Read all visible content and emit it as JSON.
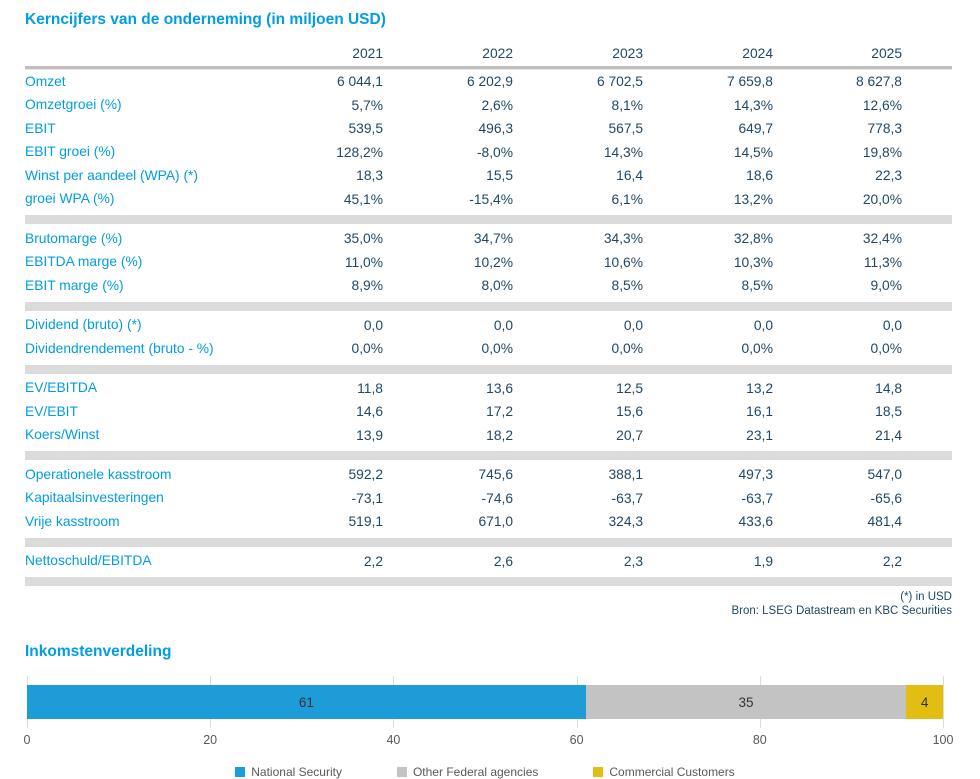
{
  "table": {
    "title": "Kerncijfers van de onderneming (in miljoen USD)",
    "years": [
      "2021",
      "2022",
      "2023",
      "2024",
      "2025"
    ],
    "sections": [
      {
        "rows": [
          {
            "label": "Omzet",
            "values": [
              "6 044,1",
              "6 202,9",
              "6 702,5",
              "7 659,8",
              "8 627,8"
            ]
          },
          {
            "label": "Omzetgroei (%)",
            "values": [
              "5,7%",
              "2,6%",
              "8,1%",
              "14,3%",
              "12,6%"
            ]
          },
          {
            "label": "EBIT",
            "values": [
              "539,5",
              "496,3",
              "567,5",
              "649,7",
              "778,3"
            ]
          },
          {
            "label": "EBIT groei (%)",
            "values": [
              "128,2%",
              "-8,0%",
              "14,3%",
              "14,5%",
              "19,8%"
            ]
          },
          {
            "label": "Winst per aandeel (WPA) (*)",
            "values": [
              "18,3",
              "15,5",
              "16,4",
              "18,6",
              "22,3"
            ]
          },
          {
            "label": "groei WPA (%)",
            "values": [
              "45,1%",
              "-15,4%",
              "6,1%",
              "13,2%",
              "20,0%"
            ]
          }
        ]
      },
      {
        "rows": [
          {
            "label": "Brutomarge (%)",
            "values": [
              "35,0%",
              "34,7%",
              "34,3%",
              "32,8%",
              "32,4%"
            ]
          },
          {
            "label": "EBITDA marge (%)",
            "values": [
              "11,0%",
              "10,2%",
              "10,6%",
              "10,3%",
              "11,3%"
            ]
          },
          {
            "label": "EBIT marge (%)",
            "values": [
              "8,9%",
              "8,0%",
              "8,5%",
              "8,5%",
              "9,0%"
            ]
          }
        ]
      },
      {
        "rows": [
          {
            "label": "Dividend (bruto) (*)",
            "values": [
              "0,0",
              "0,0",
              "0,0",
              "0,0",
              "0,0"
            ]
          },
          {
            "label": "Dividendrendement (bruto - %)",
            "wrap": true,
            "values": [
              "0,0%",
              "0,0%",
              "0,0%",
              "0,0%",
              "0,0%"
            ]
          }
        ]
      },
      {
        "rows": [
          {
            "label": "EV/EBITDA",
            "values": [
              "11,8",
              "13,6",
              "12,5",
              "13,2",
              "14,8"
            ]
          },
          {
            "label": "EV/EBIT",
            "values": [
              "14,6",
              "17,2",
              "15,6",
              "16,1",
              "18,5"
            ]
          },
          {
            "label": "Koers/Winst",
            "values": [
              "13,9",
              "18,2",
              "20,7",
              "23,1",
              "21,4"
            ]
          }
        ]
      },
      {
        "rows": [
          {
            "label": "Operationele kasstroom",
            "values": [
              "592,2",
              "745,6",
              "388,1",
              "497,3",
              "547,0"
            ]
          },
          {
            "label": "Kapitaalsinvesteringen",
            "values": [
              "-73,1",
              "-74,6",
              "-63,7",
              "-63,7",
              "-65,6"
            ]
          },
          {
            "label": "Vrije kasstroom",
            "values": [
              "519,1",
              "671,0",
              "324,3",
              "433,6",
              "481,4"
            ]
          }
        ]
      },
      {
        "rows": [
          {
            "label": "Nettoschuld/EBITDA",
            "values": [
              "2,2",
              "2,6",
              "2,3",
              "1,9",
              "2,2"
            ]
          }
        ]
      }
    ],
    "footnotes": [
      "(*) in USD",
      "Bron: LSEG Datastream en KBC Securities"
    ]
  },
  "chart_data": {
    "type": "bar",
    "orientation": "horizontal-stacked",
    "title": "Inkomstenverdeling",
    "series": [
      {
        "name": "National Security",
        "value": 61,
        "color": "#1E9CD8"
      },
      {
        "name": "Other Federal agencies",
        "value": 35,
        "color": "#C3C3C3"
      },
      {
        "name": "Commercial Customers",
        "value": 4,
        "color": "#E2BE13"
      }
    ],
    "xlim": [
      0,
      100
    ],
    "xticks": [
      "0",
      "20",
      "40",
      "60",
      "80",
      "100"
    ],
    "grid": true,
    "legend_position": "bottom"
  },
  "colors": {
    "accent_blue": "#009EE0",
    "value_navy": "#1F4866",
    "separator_gray": "#DBDBDB"
  }
}
